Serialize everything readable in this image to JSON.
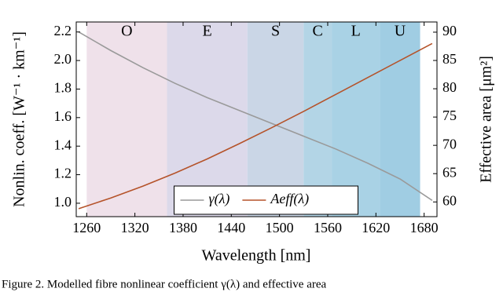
{
  "chart_data": {
    "type": "line",
    "xlabel": "Wavelength [nm]",
    "ylabel": "Nonlin. coeff. [W⁻¹ · km⁻¹]",
    "y2label": "Effective area [μm²]",
    "caption": "Figure 2.   Modelled fibre nonlinear coefficient γ(λ) and effective area",
    "x": [
      1250,
      1290,
      1330,
      1370,
      1410,
      1450,
      1490,
      1530,
      1570,
      1610,
      1650,
      1690
    ],
    "series": [
      {
        "name": "γ(λ)",
        "color": "#9a9a9a",
        "values": [
          2.2,
          2.07,
          1.95,
          1.84,
          1.74,
          1.65,
          1.56,
          1.47,
          1.38,
          1.28,
          1.17,
          1.02
        ]
      },
      {
        "name": "Aeff(λ)",
        "color": "#b5532a",
        "axis": "y2",
        "values": [
          58.8,
          60.7,
          62.8,
          65.1,
          67.6,
          70.3,
          73.1,
          76.0,
          79.0,
          82.0,
          85.0,
          88.0
        ]
      }
    ],
    "bands": [
      {
        "name": "O",
        "start": 1260,
        "end": 1360,
        "color": "#efe1ea"
      },
      {
        "name": "E",
        "start": 1360,
        "end": 1460,
        "color": "#dcd9ea"
      },
      {
        "name": "S",
        "start": 1460,
        "end": 1530,
        "color": "#cad6e6"
      },
      {
        "name": "C",
        "start": 1530,
        "end": 1565,
        "color": "#b3d5e6"
      },
      {
        "name": "L",
        "start": 1565,
        "end": 1625,
        "color": "#a9d2e5"
      },
      {
        "name": "U",
        "start": 1625,
        "end": 1675,
        "color": "#a0cde3"
      }
    ],
    "xlim": [
      1247,
      1696
    ],
    "xticks": [
      1260,
      1320,
      1380,
      1440,
      1500,
      1560,
      1620,
      1680
    ],
    "ylim": [
      0.906,
      2.27
    ],
    "yticks": [
      {
        "value": 1.0,
        "label": "1.0"
      },
      1.2,
      1.4,
      1.6,
      1.8,
      {
        "value": 2.0,
        "label": "2.0"
      },
      2.2
    ],
    "y2lim": [
      57.4,
      91.8
    ],
    "y2ticks": [
      60,
      65,
      70,
      75,
      80,
      85,
      90
    ],
    "legend": "lower center"
  }
}
